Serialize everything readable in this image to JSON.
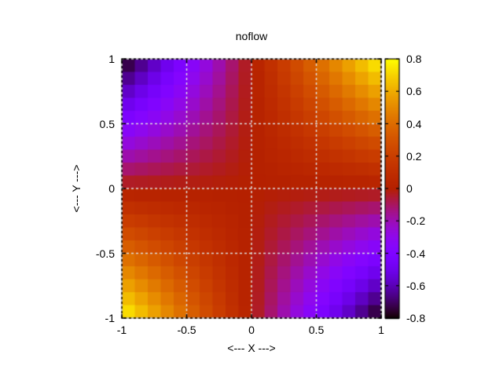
{
  "figure": {
    "colors": {
      "background": "#ffffff",
      "text": "#000000",
      "border": "#000000",
      "grid": "#e0e0e0"
    }
  },
  "chart_data": {
    "type": "heatmap",
    "title": "noflow",
    "xlabel": "<--- X --->",
    "ylabel": "<--- Y --->",
    "xlim": [
      -1,
      1
    ],
    "ylim": [
      -1,
      1
    ],
    "grid": true,
    "x_tick_labels": [
      "-1",
      "-0.5",
      "0",
      "0.5",
      "1"
    ],
    "x_tick_values": [
      -1,
      -0.5,
      0,
      0.5,
      1
    ],
    "y_tick_labels": [
      "1",
      "0.5",
      "0",
      "-0.5",
      "-1"
    ],
    "y_tick_values": [
      1,
      0.5,
      0,
      -0.5,
      -1
    ],
    "colorbar": {
      "range": [
        -0.8,
        0.8
      ],
      "tick_labels": [
        "0.8",
        "0.6",
        "0.4",
        "0.2",
        "0",
        "-0.2",
        "-0.4",
        "-0.6",
        "-0.8"
      ],
      "tick_values": [
        0.8,
        0.6,
        0.4,
        0.2,
        0,
        -0.2,
        -0.4,
        -0.6,
        -0.8
      ],
      "palette": {
        "name": "gnuplot-pm3d-default",
        "rgbformulae": [
          7,
          5,
          15
        ]
      }
    },
    "x": [
      -0.95,
      -0.85,
      -0.75,
      -0.65,
      -0.55,
      -0.45,
      -0.35,
      -0.25,
      -0.15,
      -0.05,
      0.05,
      0.15,
      0.25,
      0.35,
      0.45,
      0.55,
      0.65,
      0.75,
      0.85,
      0.95
    ],
    "y": [
      0.95,
      0.85,
      0.75,
      0.65,
      0.55,
      0.45,
      0.35,
      0.25,
      0.15,
      0.05,
      -0.05,
      -0.15,
      -0.25,
      -0.35,
      -0.45,
      -0.55,
      -0.65,
      -0.75,
      -0.85,
      -0.95
    ],
    "z": [
      [
        -0.722,
        -0.646,
        -0.57,
        -0.494,
        -0.418,
        -0.342,
        -0.266,
        -0.19,
        -0.114,
        -0.038,
        0.038,
        0.114,
        0.19,
        0.266,
        0.342,
        0.418,
        0.494,
        0.57,
        0.646,
        0.722
      ],
      [
        -0.646,
        -0.578,
        -0.51,
        -0.442,
        -0.374,
        -0.306,
        -0.238,
        -0.17,
        -0.102,
        -0.034,
        0.034,
        0.102,
        0.17,
        0.238,
        0.306,
        0.374,
        0.442,
        0.51,
        0.578,
        0.646
      ],
      [
        -0.57,
        -0.51,
        -0.45,
        -0.39,
        -0.33,
        -0.27,
        -0.21,
        -0.15,
        -0.09,
        -0.03,
        0.03,
        0.09,
        0.15,
        0.21,
        0.27,
        0.33,
        0.39,
        0.45,
        0.51,
        0.57
      ],
      [
        -0.494,
        -0.442,
        -0.39,
        -0.338,
        -0.286,
        -0.234,
        -0.182,
        -0.13,
        -0.078,
        -0.026,
        0.026,
        0.078,
        0.13,
        0.182,
        0.234,
        0.286,
        0.338,
        0.39,
        0.442,
        0.494
      ],
      [
        -0.418,
        -0.374,
        -0.33,
        -0.286,
        -0.242,
        -0.198,
        -0.154,
        -0.11,
        -0.066,
        -0.022,
        0.022,
        0.066,
        0.11,
        0.154,
        0.198,
        0.242,
        0.286,
        0.33,
        0.374,
        0.418
      ],
      [
        -0.342,
        -0.306,
        -0.27,
        -0.234,
        -0.198,
        -0.162,
        -0.126,
        -0.09,
        -0.054,
        -0.018,
        0.018,
        0.054,
        0.09,
        0.126,
        0.162,
        0.198,
        0.234,
        0.27,
        0.306,
        0.342
      ],
      [
        -0.266,
        -0.238,
        -0.21,
        -0.182,
        -0.154,
        -0.126,
        -0.098,
        -0.07,
        -0.042,
        -0.014,
        0.014,
        0.042,
        0.07,
        0.098,
        0.126,
        0.154,
        0.182,
        0.21,
        0.238,
        0.266
      ],
      [
        -0.19,
        -0.17,
        -0.15,
        -0.13,
        -0.11,
        -0.09,
        -0.07,
        -0.05,
        -0.03,
        -0.01,
        0.01,
        0.03,
        0.05,
        0.07,
        0.09,
        0.11,
        0.13,
        0.15,
        0.17,
        0.19
      ],
      [
        -0.114,
        -0.102,
        -0.09,
        -0.078,
        -0.066,
        -0.054,
        -0.042,
        -0.03,
        -0.018,
        -0.006,
        0.006,
        0.018,
        0.03,
        0.042,
        0.054,
        0.066,
        0.078,
        0.09,
        0.102,
        0.114
      ],
      [
        -0.038,
        -0.034,
        -0.03,
        -0.026,
        -0.022,
        -0.018,
        -0.014,
        -0.01,
        -0.006,
        -0.002,
        0.002,
        0.006,
        0.01,
        0.014,
        0.018,
        0.022,
        0.026,
        0.03,
        0.034,
        0.038
      ],
      [
        0.038,
        0.034,
        0.03,
        0.026,
        0.022,
        0.018,
        0.014,
        0.01,
        0.006,
        0.002,
        -0.002,
        -0.006,
        -0.01,
        -0.014,
        -0.018,
        -0.022,
        -0.026,
        -0.03,
        -0.034,
        -0.038
      ],
      [
        0.114,
        0.102,
        0.09,
        0.078,
        0.066,
        0.054,
        0.042,
        0.03,
        0.018,
        0.006,
        -0.006,
        -0.018,
        -0.03,
        -0.042,
        -0.054,
        -0.066,
        -0.078,
        -0.09,
        -0.102,
        -0.114
      ],
      [
        0.19,
        0.17,
        0.15,
        0.13,
        0.11,
        0.09,
        0.07,
        0.05,
        0.03,
        0.01,
        -0.01,
        -0.03,
        -0.05,
        -0.07,
        -0.09,
        -0.11,
        -0.13,
        -0.15,
        -0.17,
        -0.19
      ],
      [
        0.266,
        0.238,
        0.21,
        0.182,
        0.154,
        0.126,
        0.098,
        0.07,
        0.042,
        0.014,
        -0.014,
        -0.042,
        -0.07,
        -0.098,
        -0.126,
        -0.154,
        -0.182,
        -0.21,
        -0.238,
        -0.266
      ],
      [
        0.342,
        0.306,
        0.27,
        0.234,
        0.198,
        0.162,
        0.126,
        0.09,
        0.054,
        0.018,
        -0.018,
        -0.054,
        -0.09,
        -0.126,
        -0.162,
        -0.198,
        -0.234,
        -0.27,
        -0.306,
        -0.342
      ],
      [
        0.418,
        0.374,
        0.33,
        0.286,
        0.242,
        0.198,
        0.154,
        0.11,
        0.066,
        0.022,
        -0.022,
        -0.066,
        -0.11,
        -0.154,
        -0.198,
        -0.242,
        -0.286,
        -0.33,
        -0.374,
        -0.418
      ],
      [
        0.494,
        0.442,
        0.39,
        0.338,
        0.286,
        0.234,
        0.182,
        0.13,
        0.078,
        0.026,
        -0.026,
        -0.078,
        -0.13,
        -0.182,
        -0.234,
        -0.286,
        -0.338,
        -0.39,
        -0.442,
        -0.494
      ],
      [
        0.57,
        0.51,
        0.45,
        0.39,
        0.33,
        0.27,
        0.21,
        0.15,
        0.09,
        0.03,
        -0.03,
        -0.09,
        -0.15,
        -0.21,
        -0.27,
        -0.33,
        -0.39,
        -0.45,
        -0.51,
        -0.57
      ],
      [
        0.646,
        0.578,
        0.51,
        0.442,
        0.374,
        0.306,
        0.238,
        0.17,
        0.102,
        0.034,
        -0.034,
        -0.102,
        -0.17,
        -0.238,
        -0.306,
        -0.374,
        -0.442,
        -0.51,
        -0.578,
        -0.646
      ],
      [
        0.722,
        0.646,
        0.57,
        0.494,
        0.418,
        0.342,
        0.266,
        0.19,
        0.114,
        0.038,
        -0.038,
        -0.114,
        -0.19,
        -0.266,
        -0.342,
        -0.418,
        -0.494,
        -0.57,
        -0.646,
        -0.722
      ]
    ]
  }
}
